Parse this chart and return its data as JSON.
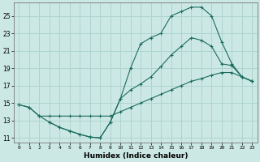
{
  "xlabel": "Humidex (Indice chaleur)",
  "bg_color": "#cce8e4",
  "line_color": "#1a6b5e",
  "grid_color": "#aed4ce",
  "xlim": [
    -0.5,
    23.5
  ],
  "ylim": [
    10.5,
    26.5
  ],
  "xticks": [
    0,
    1,
    2,
    3,
    4,
    5,
    6,
    7,
    8,
    9,
    10,
    11,
    12,
    13,
    14,
    15,
    16,
    17,
    18,
    19,
    20,
    21,
    22,
    23
  ],
  "yticks": [
    11,
    13,
    15,
    17,
    19,
    21,
    23,
    25
  ],
  "line1_x": [
    0,
    1,
    2,
    3,
    4,
    5,
    6,
    7,
    8,
    9,
    10,
    11,
    12,
    13,
    14,
    15,
    16,
    17,
    18,
    19,
    20,
    21,
    22,
    23
  ],
  "line1_y": [
    14.8,
    14.5,
    13.5,
    12.8,
    12.2,
    11.8,
    11.4,
    11.1,
    11.0,
    12.8,
    15.5,
    19.0,
    21.8,
    22.5,
    23.0,
    25.0,
    25.5,
    26.0,
    26.0,
    25.0,
    22.0,
    19.5,
    18.0,
    17.5
  ],
  "line2_x": [
    0,
    1,
    2,
    3,
    4,
    5,
    6,
    7,
    8,
    9,
    10,
    11,
    12,
    13,
    14,
    15,
    16,
    17,
    18,
    19,
    20,
    21,
    22,
    23
  ],
  "line2_y": [
    14.8,
    14.5,
    13.5,
    13.5,
    13.5,
    13.5,
    13.5,
    13.5,
    13.5,
    13.5,
    14.0,
    14.5,
    15.0,
    15.5,
    16.0,
    16.5,
    17.0,
    17.5,
    17.8,
    18.2,
    18.5,
    18.5,
    18.0,
    17.5
  ],
  "line3_x": [
    3,
    4,
    5,
    6,
    7,
    8,
    9,
    10,
    11,
    12,
    13,
    14,
    15,
    16,
    17,
    18,
    19,
    20,
    21,
    22,
    23
  ],
  "line3_y": [
    12.8,
    12.2,
    11.8,
    11.4,
    11.1,
    11.0,
    12.8,
    15.5,
    16.5,
    17.2,
    18.0,
    19.2,
    20.5,
    21.5,
    22.5,
    22.2,
    21.5,
    19.5,
    19.3,
    18.0,
    17.5
  ]
}
